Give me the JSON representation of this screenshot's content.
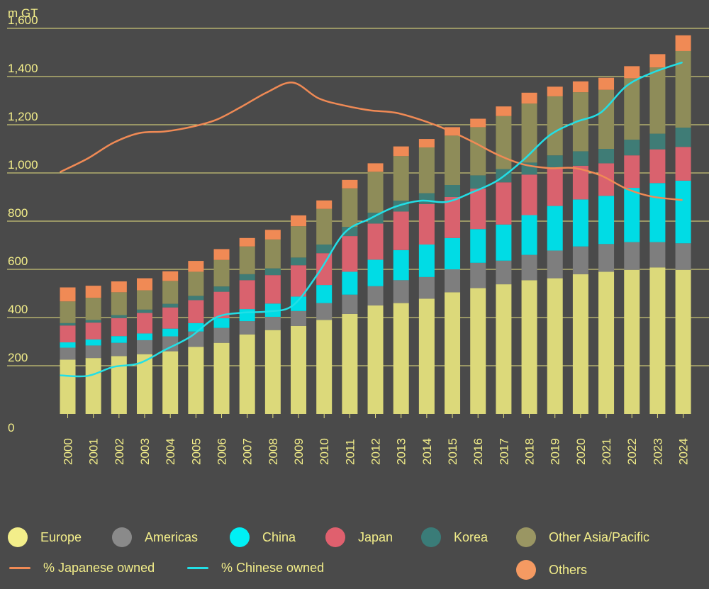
{
  "chart_data": {
    "type": "bar",
    "stacked": true,
    "ylabel": "m GT",
    "ylim": [
      0,
      1600
    ],
    "yticks": [
      0,
      200,
      400,
      600,
      800,
      1000,
      1200,
      1400,
      1600
    ],
    "ytick_labels": [
      "0",
      "200",
      "400",
      "600",
      "800",
      "1,000",
      "1,200",
      "1,400",
      "1,600"
    ],
    "categories": [
      "2000",
      "2001",
      "2002",
      "2003",
      "2004",
      "2005",
      "2006",
      "2007",
      "2008",
      "2009",
      "2010",
      "2011",
      "2012",
      "2013",
      "2014",
      "2015",
      "2016",
      "2017",
      "2018",
      "2019",
      "2020",
      "2021",
      "2022",
      "2023",
      "2024"
    ],
    "series": [
      {
        "name": "Europe",
        "color": "#dcd97a",
        "values": [
          225,
          232,
          240,
          248,
          260,
          278,
          295,
          330,
          348,
          365,
          390,
          415,
          450,
          460,
          478,
          505,
          522,
          538,
          555,
          563,
          580,
          590,
          598,
          608,
          598
        ]
      },
      {
        "name": "Americas",
        "color": "#7e7e7e",
        "values": [
          50,
          52,
          55,
          58,
          62,
          64,
          62,
          55,
          55,
          62,
          70,
          80,
          80,
          95,
          90,
          95,
          105,
          98,
          105,
          115,
          115,
          115,
          115,
          105,
          110
        ]
      },
      {
        "name": "China",
        "color": "#00dce5",
        "values": [
          22,
          25,
          28,
          28,
          32,
          35,
          40,
          50,
          55,
          60,
          75,
          95,
          110,
          125,
          135,
          130,
          140,
          150,
          165,
          185,
          195,
          200,
          225,
          245,
          260
        ]
      },
      {
        "name": "Japan",
        "color": "#d9626e",
        "values": [
          70,
          70,
          75,
          85,
          88,
          95,
          110,
          120,
          118,
          130,
          132,
          148,
          150,
          160,
          168,
          170,
          168,
          175,
          168,
          160,
          140,
          135,
          135,
          140,
          140
        ]
      },
      {
        "name": "Korea",
        "color": "#3f7c76",
        "values": [
          10,
          11,
          12,
          14,
          15,
          18,
          22,
          25,
          28,
          32,
          36,
          38,
          45,
          45,
          45,
          50,
          55,
          55,
          50,
          50,
          60,
          60,
          65,
          65,
          80
        ]
      },
      {
        "name": "Other Asia/Pacific",
        "color": "#8e8c59",
        "values": [
          90,
          92,
          95,
          80,
          95,
          100,
          110,
          115,
          120,
          130,
          148,
          160,
          170,
          185,
          190,
          205,
          200,
          220,
          245,
          245,
          245,
          245,
          255,
          275,
          318
        ]
      },
      {
        "name": "Others",
        "color": "#f08a55",
        "values": [
          58,
          50,
          45,
          50,
          40,
          45,
          45,
          35,
          40,
          45,
          35,
          35,
          35,
          40,
          35,
          35,
          35,
          40,
          45,
          40,
          45,
          50,
          50,
          55,
          65
        ]
      }
    ],
    "lines": [
      {
        "name": "% Japanese owned",
        "color": "#f08a55",
        "values": [
          1005,
          1060,
          1125,
          1165,
          1172,
          1190,
          1220,
          1275,
          1335,
          1375,
          1310,
          1280,
          1260,
          1250,
          1220,
          1180,
          1130,
          1075,
          1035,
          1020,
          1020,
          990,
          935,
          902,
          888
        ]
      },
      {
        "name": "% Chinese owned",
        "color": "#22dfe6",
        "values": [
          160,
          158,
          195,
          210,
          265,
          320,
          400,
          420,
          425,
          450,
          585,
          750,
          810,
          860,
          885,
          880,
          920,
          970,
          1055,
          1155,
          1210,
          1250,
          1360,
          1415,
          1458
        ]
      }
    ],
    "legend": [
      {
        "name": "Europe",
        "kind": "dot",
        "color": "#f3ee8a"
      },
      {
        "name": "Americas",
        "kind": "dot",
        "color": "#8a8a8a"
      },
      {
        "name": "China",
        "kind": "dot",
        "color": "#00f0f5"
      },
      {
        "name": "Japan",
        "kind": "dot",
        "color": "#e0606e"
      },
      {
        "name": "Korea",
        "kind": "dot",
        "color": "#3a7c78"
      },
      {
        "name": "Other Asia/Pacific",
        "kind": "dot",
        "color": "#9a9663"
      },
      {
        "name": "% Japanese owned",
        "kind": "line",
        "color": "#f08a55"
      },
      {
        "name": "% Chinese owned",
        "kind": "line",
        "color": "#22dfe6"
      },
      {
        "name": "Others",
        "kind": "dot",
        "color": "#f59a62"
      }
    ],
    "grid": true,
    "legend_position": "bottom"
  }
}
